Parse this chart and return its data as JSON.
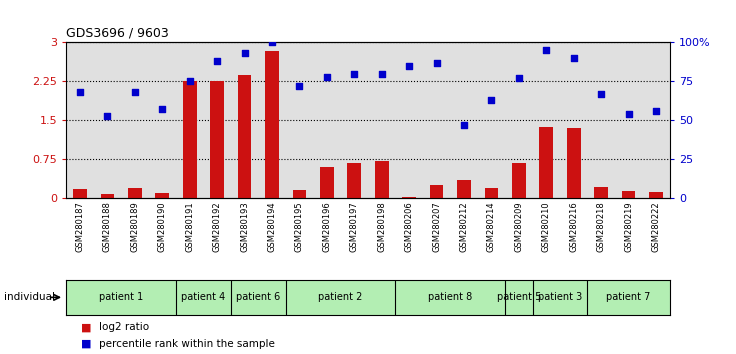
{
  "title": "GDS3696 / 9603",
  "samples": [
    "GSM280187",
    "GSM280188",
    "GSM280189",
    "GSM280190",
    "GSM280191",
    "GSM280192",
    "GSM280193",
    "GSM280194",
    "GSM280195",
    "GSM280196",
    "GSM280197",
    "GSM280198",
    "GSM280206",
    "GSM280207",
    "GSM280212",
    "GSM280214",
    "GSM280209",
    "GSM280210",
    "GSM280216",
    "GSM280218",
    "GSM280219",
    "GSM280222"
  ],
  "log2_ratio": [
    0.18,
    0.08,
    0.19,
    0.1,
    2.25,
    2.25,
    2.37,
    2.83,
    0.15,
    0.6,
    0.68,
    0.72,
    0.02,
    0.25,
    0.36,
    0.2,
    0.68,
    1.38,
    1.35,
    0.22,
    0.14,
    0.12
  ],
  "percentile": [
    68,
    53,
    68,
    57,
    75,
    88,
    93,
    100,
    72,
    78,
    80,
    80,
    85,
    87,
    47,
    63,
    77,
    95,
    90,
    67,
    54,
    56
  ],
  "patients": [
    {
      "label": "patient 1",
      "start": 0,
      "end": 4
    },
    {
      "label": "patient 4",
      "start": 4,
      "end": 6
    },
    {
      "label": "patient 6",
      "start": 6,
      "end": 8
    },
    {
      "label": "patient 2",
      "start": 8,
      "end": 12
    },
    {
      "label": "patient 8",
      "start": 12,
      "end": 16
    },
    {
      "label": "patient 5",
      "start": 16,
      "end": 17
    },
    {
      "label": "patient 3",
      "start": 17,
      "end": 19
    },
    {
      "label": "patient 7",
      "start": 19,
      "end": 22
    }
  ],
  "bar_color": "#cc1111",
  "scatter_color": "#0000cc",
  "left_yticks": [
    0,
    0.75,
    1.5,
    2.25,
    3
  ],
  "right_yticks": [
    0,
    25,
    50,
    75,
    100
  ],
  "right_yticklabels": [
    "0",
    "25",
    "50",
    "75",
    "100%"
  ],
  "ylim_left": [
    0,
    3
  ],
  "ylim_right": [
    0,
    100
  ],
  "bg_color_plot": "#e0e0e0",
  "bg_color_patient": "#b3eeb3",
  "legend_bar_label": "log2 ratio",
  "legend_scatter_label": "percentile rank within the sample",
  "individual_label": "individual"
}
